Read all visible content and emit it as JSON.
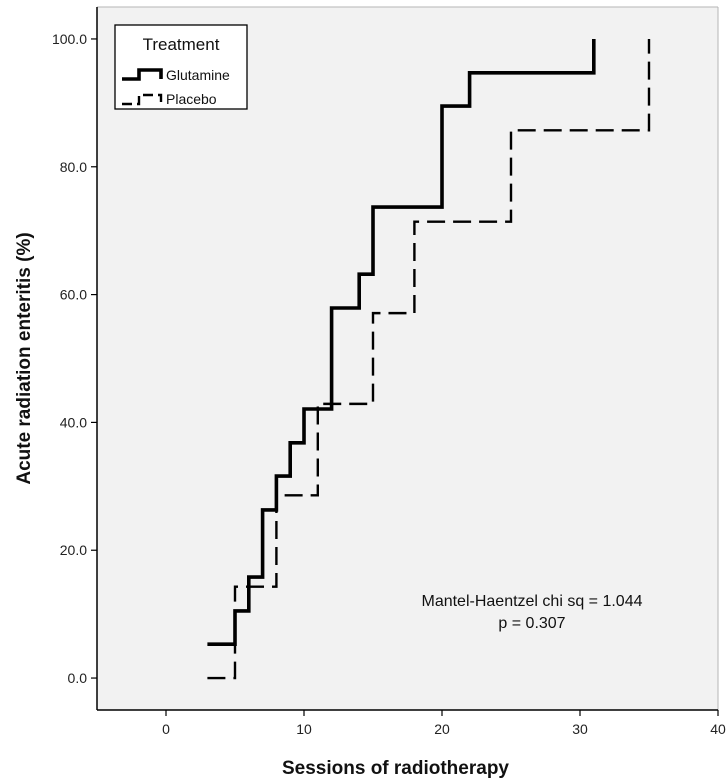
{
  "chart_data": {
    "type": "line",
    "title": "",
    "xlabel": "Sessions of radiotherapy",
    "ylabel": "Acute radiation enteritis (%)",
    "xlim": [
      -5,
      40
    ],
    "ylim": [
      -5,
      105
    ],
    "xticks": [
      0,
      10,
      20,
      30,
      40
    ],
    "xtick_labels": [
      "0",
      "10",
      "20",
      "30",
      "40"
    ],
    "yticks": [
      0,
      20,
      40,
      60,
      80,
      100
    ],
    "ytick_labels": [
      "0.0",
      "20.0",
      "40.0",
      "60.0",
      "80.0",
      "100.0"
    ],
    "grid": false,
    "background": "#f2f2f2",
    "legend": {
      "title": "Treatment",
      "position": "top-left"
    },
    "step": "post",
    "series": [
      {
        "name": "Glutamine",
        "style": "solid",
        "color": "#000000",
        "x": [
          3,
          5,
          6,
          7,
          8,
          9,
          10,
          11,
          12,
          14,
          15,
          20,
          22,
          31
        ],
        "y": [
          5.3,
          10.5,
          15.8,
          26.3,
          31.6,
          36.8,
          42.1,
          42.1,
          57.9,
          63.2,
          73.7,
          89.5,
          94.7,
          100
        ]
      },
      {
        "name": "Placebo",
        "style": "dashed",
        "color": "#000000",
        "x": [
          3,
          5,
          8,
          11,
          15,
          18,
          25,
          35
        ],
        "y": [
          0,
          14.3,
          28.6,
          42.9,
          57.1,
          71.4,
          85.7,
          100
        ]
      }
    ],
    "annotations": [
      "Mantel-Haentzel chi sq = 1.044",
      "p = 0.307"
    ]
  }
}
